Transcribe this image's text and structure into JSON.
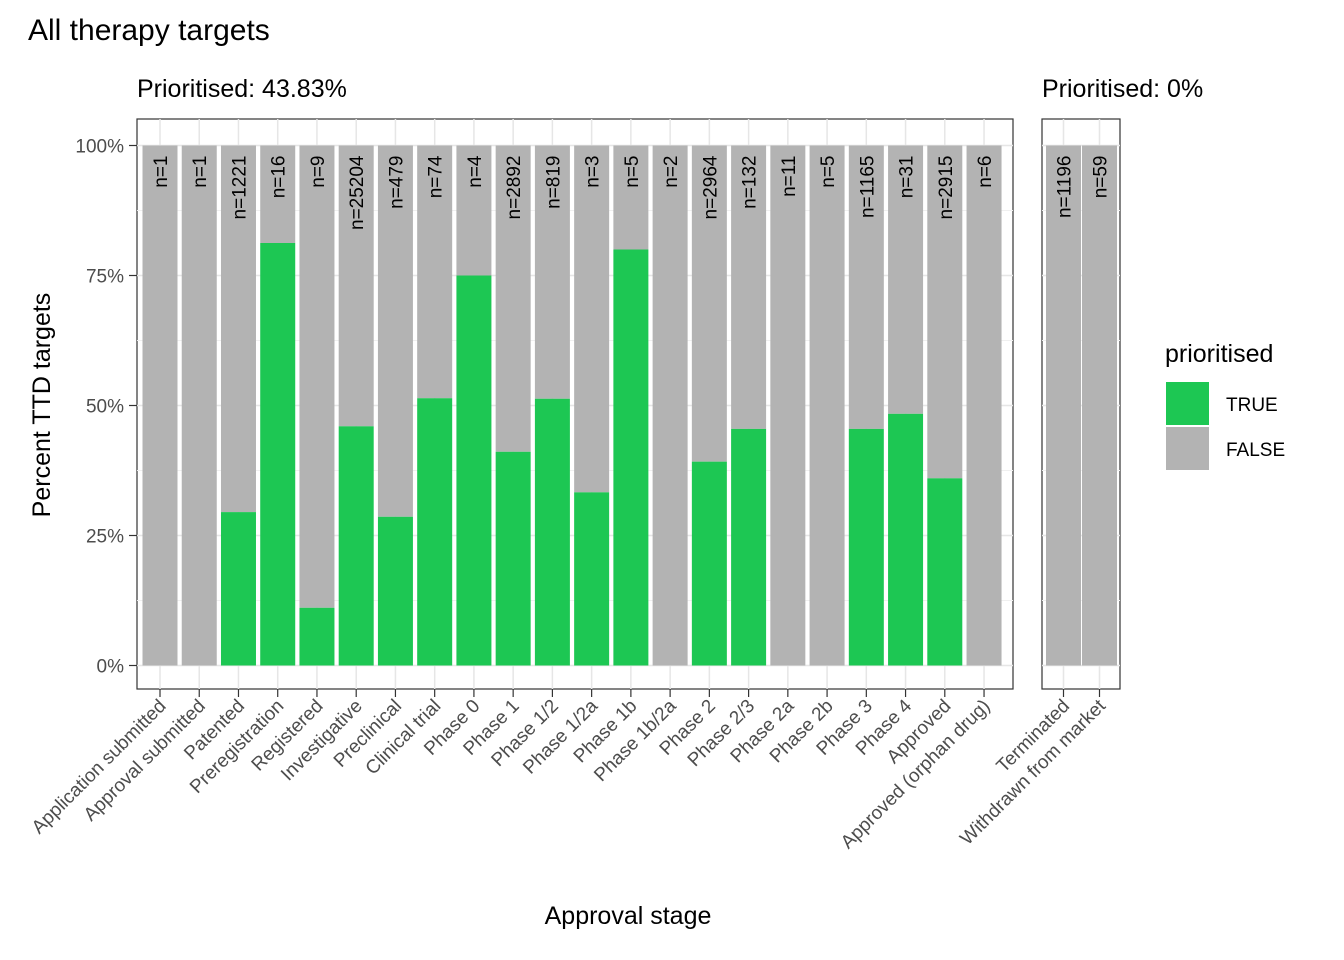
{
  "chart_data": {
    "type": "bar",
    "stacked": true,
    "title": "All therapy targets",
    "xlabel": "Approval stage",
    "ylabel": "Percent TTD targets",
    "ylim": [
      0,
      100
    ],
    "y_ticks": [
      "0%",
      "25%",
      "50%",
      "75%",
      "100%"
    ],
    "grid": true,
    "legend": {
      "title": "prioritised",
      "placement": "right",
      "entries": [
        {
          "label": "TRUE",
          "color": "#1dc753"
        },
        {
          "label": "FALSE",
          "color": "#b3b3b3"
        }
      ]
    },
    "colors": {
      "true": "#1dc753",
      "false": "#b3b3b3"
    },
    "panels": [
      {
        "title": "Prioritised: 43.83%",
        "categories": [
          "Application submitted",
          "Approval submitted",
          "Patented",
          "Preregistration",
          "Registered",
          "Investigative",
          "Preclinical",
          "Clinical trial",
          "Phase 0",
          "Phase 1",
          "Phase 1/2",
          "Phase 1/2a",
          "Phase 1b",
          "Phase 1b/2a",
          "Phase 2",
          "Phase 2/3",
          "Phase 2a",
          "Phase 2b",
          "Phase 3",
          "Phase 4",
          "Approved",
          "Approved (orphan drug)"
        ],
        "true_percent": [
          0,
          0,
          29.5,
          81.25,
          11.1,
          46.0,
          28.6,
          51.4,
          75,
          41.1,
          51.3,
          33.3,
          80,
          0,
          39.2,
          45.5,
          0,
          0,
          45.5,
          48.4,
          36.0,
          0
        ],
        "n_labels": [
          "n=1",
          "n=1",
          "n=1221",
          "n=16",
          "n=9",
          "n=25204",
          "n=479",
          "n=74",
          "n=4",
          "n=2892",
          "n=819",
          "n=3",
          "n=5",
          "n=2",
          "n=2964",
          "n=132",
          "n=11",
          "n=5",
          "n=1165",
          "n=31",
          "n=2915",
          "n=6"
        ]
      },
      {
        "title": "Prioritised: 0%",
        "categories": [
          "Terminated",
          "Withdrawn from market"
        ],
        "true_percent": [
          0,
          0
        ],
        "n_labels": [
          "n=1196",
          "n=59"
        ]
      }
    ]
  }
}
